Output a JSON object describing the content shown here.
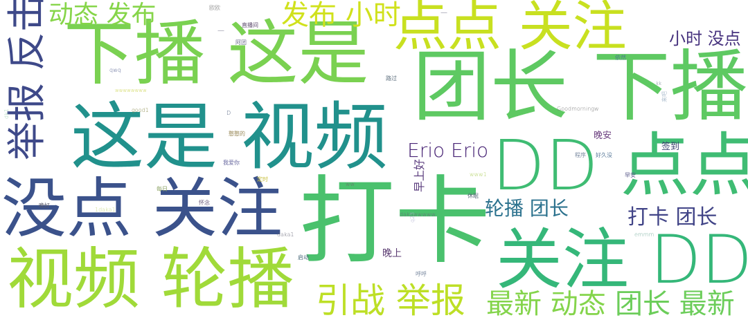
{
  "words": [
    {
      "text": "下播 这是",
      "color": "#7ad151"
    },
    {
      "text": "团长 下播",
      "color": "#5ec962"
    },
    {
      "text": "这是 视频",
      "color": "#21918c"
    },
    {
      "text": "DD 点点",
      "color": "#3fbc73"
    },
    {
      "text": "打卡",
      "color": "#4ac16d"
    },
    {
      "text": "没点 关注",
      "color": "#3b528b"
    },
    {
      "text": "视频 轮播",
      "color": "#a0da39"
    },
    {
      "text": "关注 DD",
      "color": "#35b779"
    },
    {
      "text": "点点 关注",
      "color": "#c8e020"
    },
    {
      "text": "举报 反击",
      "color": "#3e4989"
    },
    {
      "text": "动态 发布",
      "color": "#86d549"
    },
    {
      "text": "发布 小时",
      "color": "#d0e11c"
    },
    {
      "text": "小时 没点",
      "color": "#46327e"
    },
    {
      "text": "Erio Erio",
      "color": "#482475"
    },
    {
      "text": "轮播 团长",
      "color": "#2c728e"
    },
    {
      "text": "打卡 团长",
      "color": "#414487"
    },
    {
      "text": "引战 举报",
      "color": "#bddf26"
    },
    {
      "text": "最新 动态",
      "color": "#84d44b"
    },
    {
      "text": "团长 最新",
      "color": "#6ccd5a"
    },
    {
      "text": "早上好",
      "color": "#5b3d7e"
    },
    {
      "text": "晚安",
      "color": "#6a3d7e"
    },
    {
      "text": "签到",
      "color": "#39416d"
    },
    {
      "text": "晚上",
      "color": "#5a3a71"
    },
    {
      "text": "直播间",
      "color": "#5d4b6d"
    },
    {
      "text": "阿团",
      "color": "#6a6a8a"
    },
    {
      "text": "qwq",
      "color": "#4d5a8c"
    },
    {
      "text": "路过",
      "color": "#5e6f7e"
    },
    {
      "text": "依然",
      "color": "#4a7e8a"
    },
    {
      "text": "good1",
      "color": "#8a8a4a"
    },
    {
      "text": "憨憨的",
      "color": "#9a8a5a"
    },
    {
      "text": "我爱你",
      "color": "#6a6aa0"
    },
    {
      "text": "Goodmorningw",
      "color": "#7a7a7a"
    },
    {
      "text": "好久没",
      "color": "#5a7a9a"
    },
    {
      "text": "程序",
      "color": "#7a8aa0"
    },
    {
      "text": "早安",
      "color": "#5a5a8a"
    },
    {
      "text": "每日",
      "color": "#8aa060"
    },
    {
      "text": "怀念",
      "color": "#6a5a7a"
    },
    {
      "text": "晚好",
      "color": "#5a5a6a"
    },
    {
      "text": "定时",
      "color": "#c8c040"
    },
    {
      "text": "ww",
      "color": "#6a6a6a"
    },
    {
      "text": "休眠",
      "color": "#5a6a7a"
    },
    {
      "text": "www1",
      "color": "#b0d060"
    },
    {
      "text": "1daka1",
      "color": "#c8d880"
    },
    {
      "text": "dakawwwww",
      "color": "#6a6a7a"
    },
    {
      "text": "daka1",
      "color": "#6a6a7a"
    },
    {
      "text": "emmm",
      "color": "#7ab0a0"
    },
    {
      "text": "启动",
      "color": "#4a6a7a"
    },
    {
      "text": "呼呼",
      "color": "#7a8aa0"
    },
    {
      "text": "wwwwwwww",
      "color": "#c8d040"
    },
    {
      "text": "D",
      "color": "#4a5a7a"
    },
    {
      "text": "欧欧",
      "color": "#a0a0a0"
    },
    {
      "text": "kk",
      "color": "#6a7a8a"
    },
    {
      "text": "dk1",
      "color": "#a0d0b0"
    },
    {
      "text": "q23",
      "color": "#b0b0d0"
    },
    {
      "text": "来吧",
      "color": "#b0c0d0"
    },
    {
      "text": "—",
      "color": "#4a4a6a"
    },
    {
      "text": "—",
      "color": "#4a4a6a"
    }
  ]
}
